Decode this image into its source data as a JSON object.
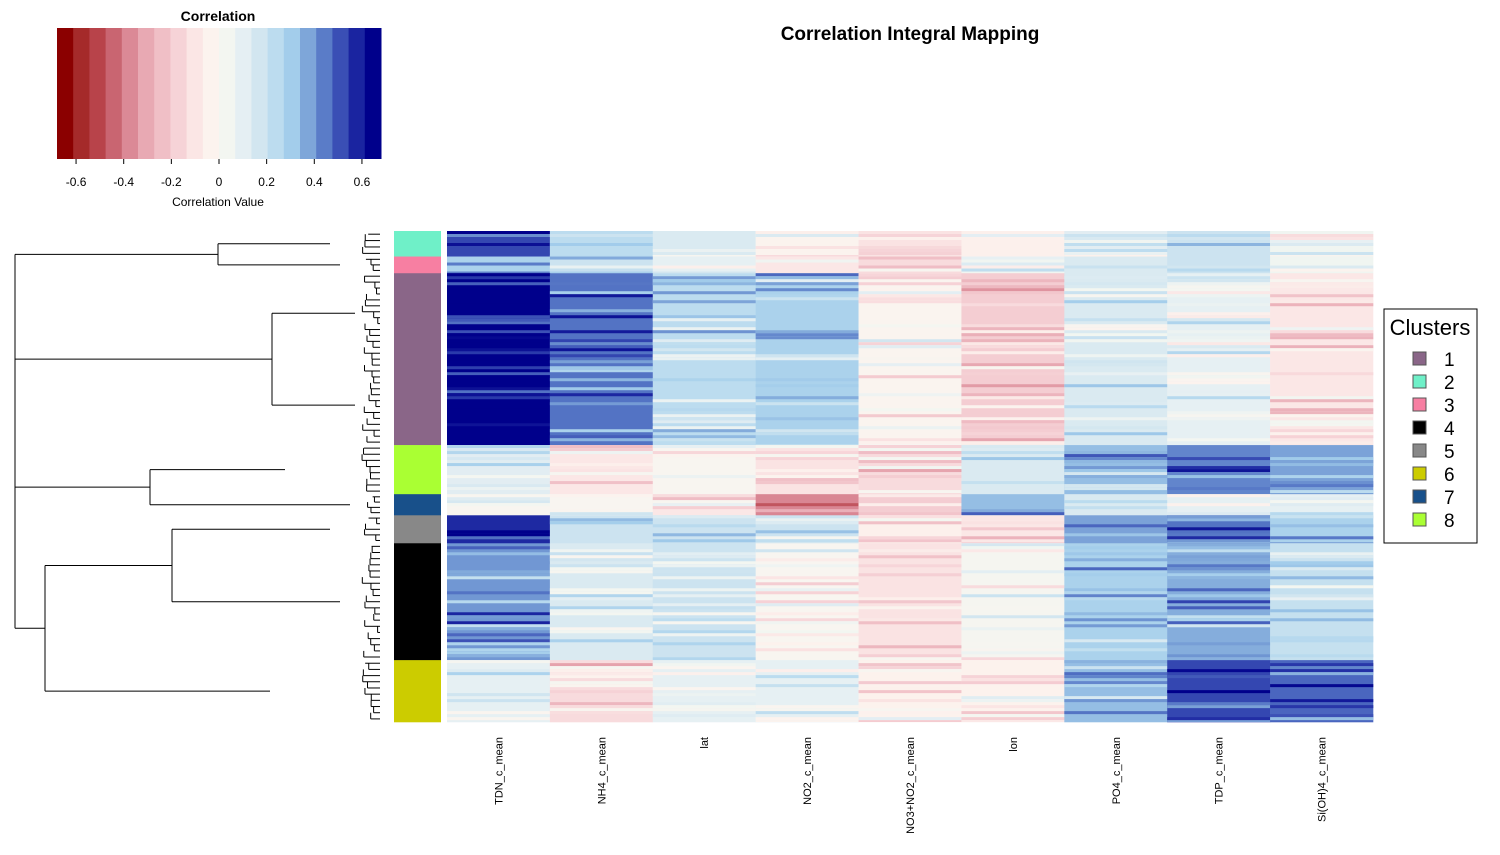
{
  "chart_data": {
    "type": "heatmap",
    "title": "Correlation Integral Mapping",
    "colorbar": {
      "title": "Correlation",
      "xlabel": "Correlation Value",
      "range": [
        -0.68,
        0.68
      ],
      "ticks": [
        "-0.6",
        "-0.4",
        "-0.2",
        "0",
        "0.2",
        "0.4",
        "0.6"
      ],
      "tick_values": [
        -0.6,
        -0.4,
        -0.2,
        0,
        0.2,
        0.4,
        0.6
      ],
      "colors": [
        "#8b0000",
        "#a52a2a",
        "#b8434a",
        "#c96571",
        "#db8996",
        "#e8a9b3",
        "#f0bfc6",
        "#f6d3d7",
        "#fbe6e5",
        "#fcf3ee",
        "#f3f6f1",
        "#e5eff3",
        "#d2e6f0",
        "#bcdcef",
        "#a3cdeb",
        "#7ea6d9",
        "#5a7cc8",
        "#3a4fb5",
        "#1a24a0",
        "#00008b"
      ]
    },
    "columns": [
      "TDN_c_mean",
      "NH4_c_mean",
      "lat",
      "NO2_c_mean",
      "NO3+NO2_c_mean",
      "lon",
      "PO4_c_mean",
      "TDP_c_mean",
      "Si(OH)4_c_mean"
    ],
    "clusters_order": [
      "2",
      "3",
      "1",
      "8",
      "7",
      "5",
      "4",
      "6"
    ],
    "cluster_row_fractions": [
      0.052,
      0.034,
      0.35,
      0.1,
      0.043,
      0.057,
      0.238,
      0.126
    ],
    "cluster_values": [
      [
        0.55,
        0.25,
        0.15,
        -0.03,
        -0.12,
        -0.05,
        0.12,
        0.2,
        0.05
      ],
      [
        0.3,
        0.2,
        0.1,
        -0.1,
        -0.15,
        0.05,
        0.15,
        0.2,
        0.05
      ],
      [
        0.68,
        0.48,
        0.25,
        0.3,
        -0.02,
        -0.2,
        0.15,
        0.1,
        -0.1
      ],
      [
        0.12,
        -0.1,
        0.0,
        -0.12,
        -0.15,
        0.15,
        0.35,
        0.45,
        0.4
      ],
      [
        0.0,
        0.0,
        -0.1,
        -0.4,
        -0.2,
        0.35,
        0.15,
        0.1,
        0.1
      ],
      [
        0.6,
        0.2,
        0.2,
        0.2,
        -0.05,
        -0.1,
        0.4,
        0.48,
        0.3
      ],
      [
        0.42,
        0.15,
        0.2,
        0.0,
        -0.12,
        0.02,
        0.3,
        0.38,
        0.22
      ],
      [
        0.1,
        -0.15,
        0.1,
        0.1,
        -0.04,
        -0.04,
        0.35,
        0.55,
        0.5
      ]
    ],
    "legend": {
      "title": "Clusters",
      "items": [
        {
          "label": "1",
          "color": "#8a6688"
        },
        {
          "label": "2",
          "color": "#6ff0c8"
        },
        {
          "label": "3",
          "color": "#f77fa2"
        },
        {
          "label": "4",
          "color": "#000000"
        },
        {
          "label": "5",
          "color": "#888888"
        },
        {
          "label": "6",
          "color": "#cccc00"
        },
        {
          "label": "7",
          "color": "#18508a"
        },
        {
          "label": "8",
          "color": "#aaff33"
        }
      ]
    },
    "dendrogram": true
  }
}
